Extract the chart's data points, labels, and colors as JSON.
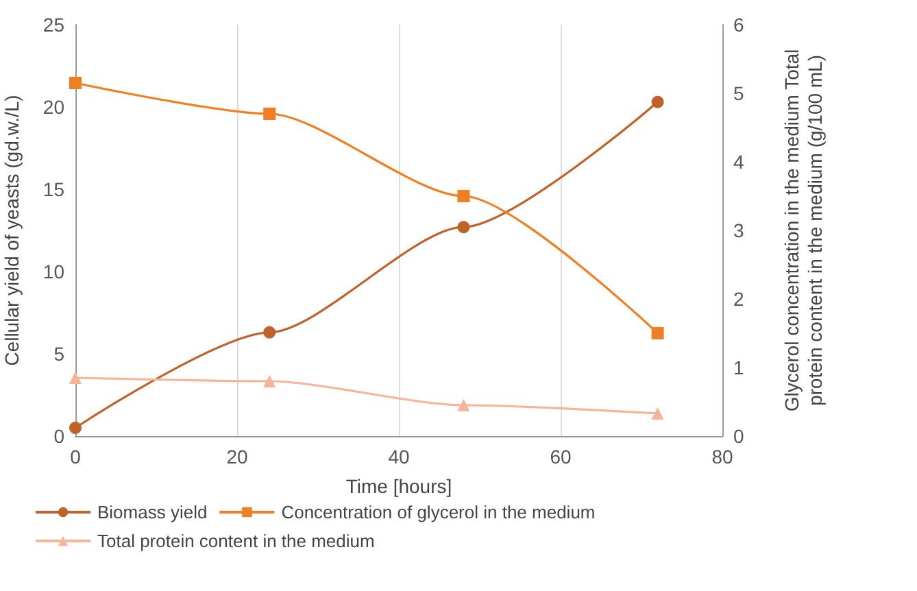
{
  "chart_data": {
    "type": "line",
    "xlabel": "Time [hours]",
    "ylabel": "Cellular yield of yeasts (gd.w./L)",
    "y2label": "Glycerol concentration in the medium Total protein content in the medium (g/100 mL)",
    "x": [
      0,
      24,
      48,
      72
    ],
    "series": [
      {
        "name": "Biomass yield",
        "color": "#c0622a",
        "marker": "circle",
        "values": [
          0.5,
          6.3,
          12.7,
          20.3
        ]
      },
      {
        "name": "Concentration of glycerol in the medium",
        "color": "#f07f24",
        "marker": "square",
        "axis": "y2",
        "values": [
          5.15,
          4.7,
          3.5,
          1.5
        ]
      },
      {
        "name": "Total protein content in the medium",
        "color": "#f7b49a",
        "marker": "triangle",
        "axis": "y2",
        "values": [
          0.85,
          0.8,
          0.45,
          0.33
        ]
      }
    ],
    "xlim": [
      0,
      80
    ],
    "xticks": [
      0,
      20,
      40,
      60,
      80
    ],
    "ylim": [
      0,
      25
    ],
    "yticks": [
      0,
      5,
      10,
      15,
      20,
      25
    ],
    "y2lim": [
      0,
      6
    ],
    "y2ticks": [
      0,
      1,
      2,
      3,
      4,
      5,
      6
    ],
    "grid": "x",
    "legend": "bottom"
  }
}
